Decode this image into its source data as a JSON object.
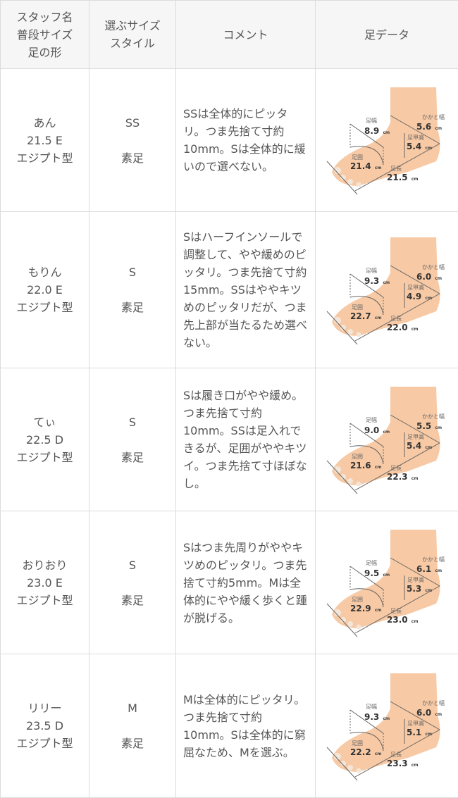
{
  "header": {
    "col1": [
      "スタッフ名",
      "普段サイズ",
      "足の形"
    ],
    "col2": [
      "選ぶサイズ",
      "スタイル"
    ],
    "col3": "コメント",
    "col4": "足データ"
  },
  "foot_labels": {
    "width": "足幅",
    "girth": "足囲",
    "length": "足長",
    "heel": "かかと幅",
    "instep": "足甲高",
    "unit": "cm"
  },
  "rows": [
    {
      "name": "あん",
      "usual": "21.5 E",
      "shape": "エジプト型",
      "size": "SS",
      "style": "素足",
      "comment": "SSは全体的にピッタリ。つま先捨て寸約10mm。Sは全体的に緩いので選べない。",
      "foot": {
        "width": "8.9",
        "girth": "21.4",
        "length": "21.5",
        "heel": "5.6",
        "instep": "5.4"
      }
    },
    {
      "name": "もりん",
      "usual": "22.0 E",
      "shape": "エジプト型",
      "size": "S",
      "style": "素足",
      "comment": "Sはハーフインソールで調整して、やや緩めのピッタリ。つま先捨て寸約15mm。SSはややキツめのピッタリだが、つま先上部が当たるため選べない。",
      "foot": {
        "width": "9.3",
        "girth": "22.7",
        "length": "22.0",
        "heel": "6.0",
        "instep": "4.9"
      }
    },
    {
      "name": "てぃ",
      "usual": "22.5 D",
      "shape": "エジプト型",
      "size": "S",
      "style": "素足",
      "comment": "Sは履き口がやや緩め。つま先捨て寸約10mm。SSは足入れできるが、足囲がややキツイ。つま先捨て寸ほぼなし。",
      "foot": {
        "width": "9.0",
        "girth": "21.6",
        "length": "22.3",
        "heel": "5.5",
        "instep": "5.4"
      }
    },
    {
      "name": "おりおり",
      "usual": "23.0 E",
      "shape": "エジプト型",
      "size": "S",
      "style": "素足",
      "comment": "Sはつま先周りがややキツめのピッタリ。つま先捨て寸約5mm。Mは全体的にやや緩く歩くと踵が脱げる。",
      "foot": {
        "width": "9.5",
        "girth": "22.9",
        "length": "23.0",
        "heel": "6.1",
        "instep": "5.3"
      }
    },
    {
      "name": "リリー",
      "usual": "23.5 D",
      "shape": "エジプト型",
      "size": "M",
      "style": "素足",
      "comment": "Mは全体的にピッタリ。つま先捨て寸約10mm。Sは全体的に窮屈なため、Mを選ぶ。",
      "foot": {
        "width": "9.3",
        "girth": "22.2",
        "length": "23.3",
        "heel": "6.0",
        "instep": "5.1"
      }
    }
  ]
}
